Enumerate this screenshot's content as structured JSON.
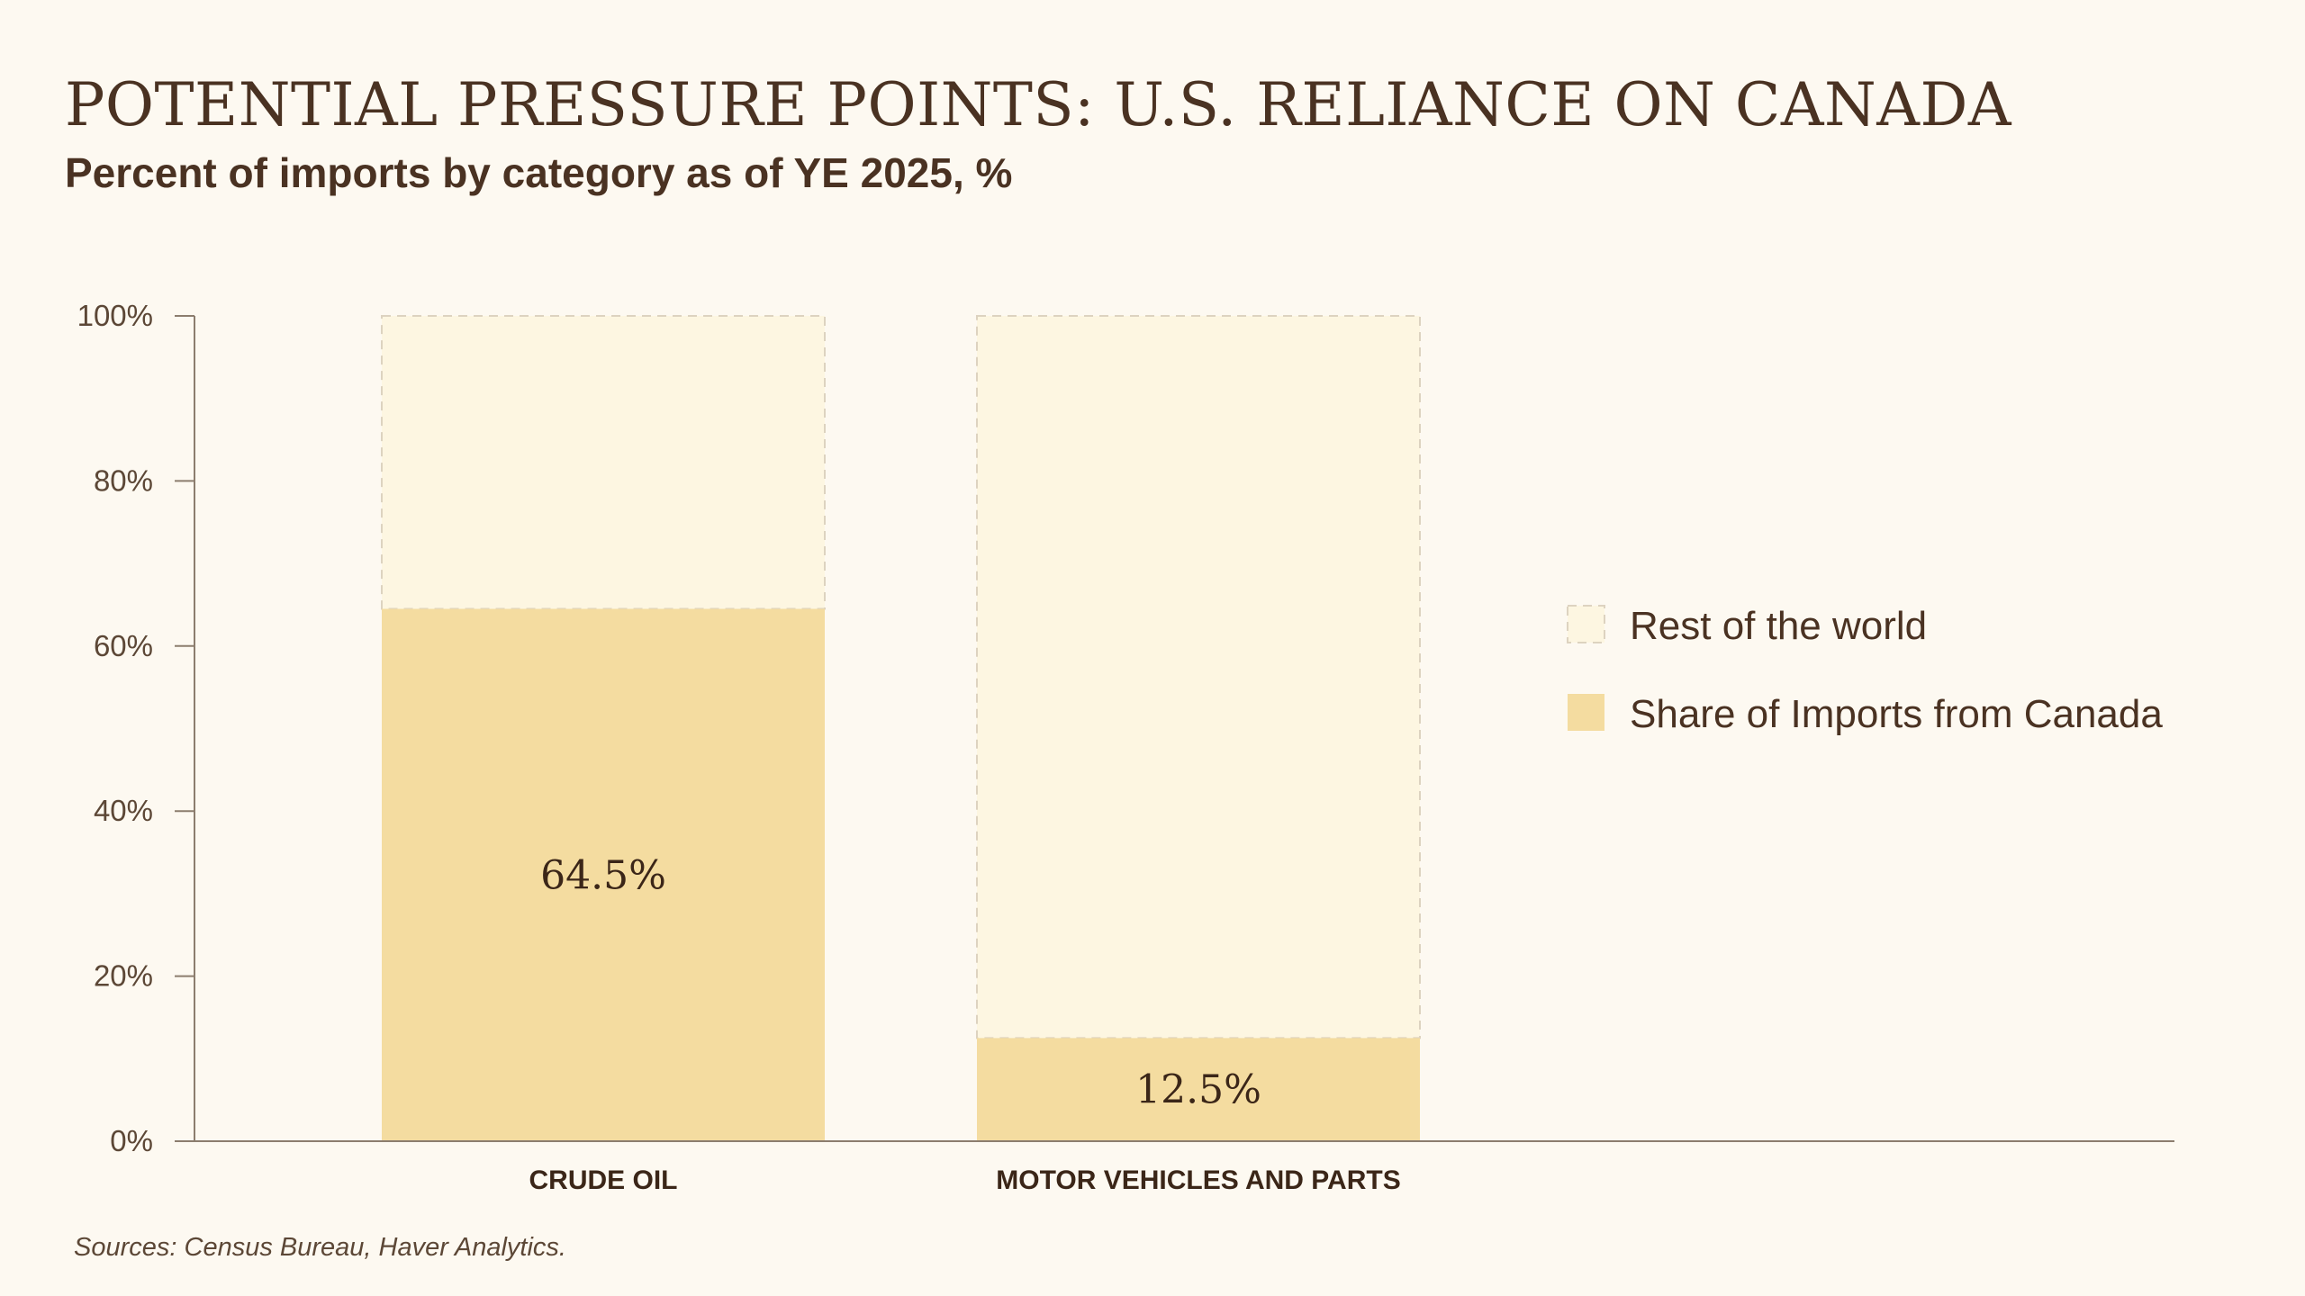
{
  "chart_data": {
    "type": "bar",
    "stacked": true,
    "title": "POTENTIAL PRESSURE POINTS: U.S. RELIANCE ON CANADA",
    "subtitle": "Percent of imports by category as of YE 2025, %",
    "categories": [
      "CRUDE OIL",
      "MOTOR VEHICLES AND PARTS"
    ],
    "series": [
      {
        "name": "Share of Imports from Canada",
        "values": [
          64.5,
          12.5
        ],
        "labels": [
          "64.5%",
          "12.5%"
        ],
        "color": "#f4dca0"
      },
      {
        "name": "Rest of the world",
        "values": [
          35.5,
          87.5
        ],
        "color": "#fdf6e1",
        "border": "dashed"
      }
    ],
    "ylim": [
      0,
      100
    ],
    "yticks": [
      0,
      20,
      40,
      60,
      80,
      100
    ],
    "ytick_labels": [
      "0%",
      "20%",
      "40%",
      "60%",
      "80%",
      "100%"
    ],
    "xlabel": "",
    "ylabel": "",
    "grid": false,
    "legend": {
      "position": "right",
      "entries": [
        "Rest of the world",
        "Share of Imports from Canada"
      ]
    },
    "source": "Sources: Census Bureau, Haver Analytics."
  },
  "colors": {
    "background": "#fdf9f1",
    "text": "#4a3222",
    "axis": "#8c7d6e",
    "canada": "#f4dca0",
    "rest": "#fdf6e1",
    "rest_border": "#ddd3c0"
  }
}
